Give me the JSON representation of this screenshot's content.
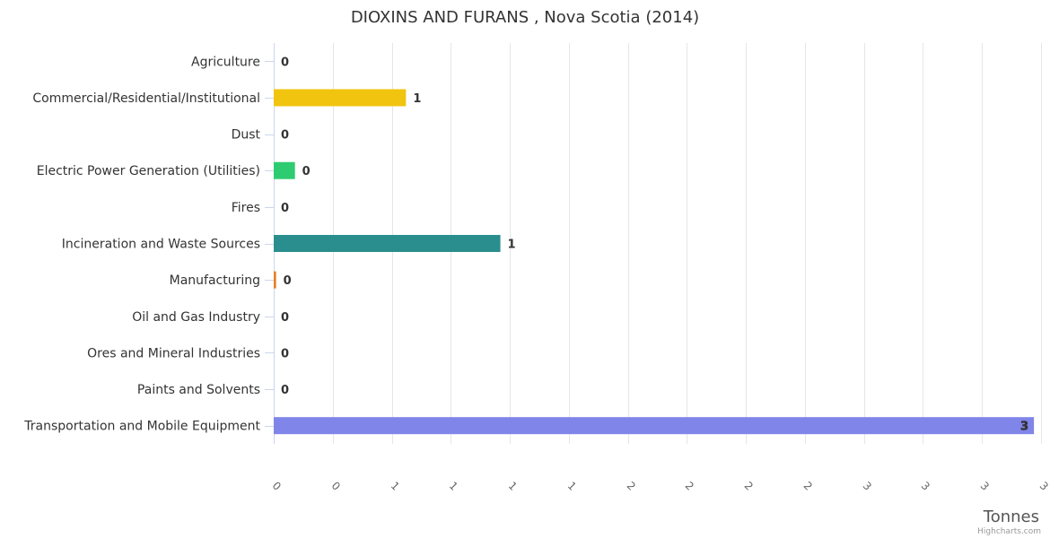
{
  "chart_data": {
    "type": "bar",
    "orientation": "horizontal",
    "title": "DIOXINS AND FURANS , Nova Scotia (2014)",
    "xlabel": "",
    "ylabel": "Tonnes",
    "categories": [
      "Agriculture",
      "Commercial/Residential/Institutional",
      "Dust",
      "Electric Power Generation (Utilities)",
      "Fires",
      "Incineration and Waste Sources",
      "Manufacturing",
      "Oil and Gas Industry",
      "Ores and Mineral Industries",
      "Paints and Solvents",
      "Transportation and Mobile Equipment"
    ],
    "values": [
      0,
      0.56,
      0,
      0.09,
      0,
      0.96,
      0.01,
      0,
      0,
      0,
      3.22
    ],
    "data_labels": [
      "0",
      "1",
      "0",
      "0",
      "0",
      "1",
      "0",
      "0",
      "0",
      "0",
      "3"
    ],
    "colors": [
      "#434348",
      "#f1c40f",
      "#90ed7d",
      "#2ecc71",
      "#8085e9",
      "#2a8e8e",
      "#e67e22",
      "#7cb5ec",
      "#f45b5b",
      "#91e8e1",
      "#8085e9"
    ],
    "tick_values": [
      0,
      0.25,
      0.5,
      0.75,
      1,
      1.25,
      1.5,
      1.75,
      2,
      2.25,
      2.5,
      2.75,
      3,
      3.25
    ],
    "tick_labels": [
      "0",
      "0",
      "1",
      "1",
      "1",
      "1",
      "2",
      "2",
      "2",
      "2",
      "3",
      "3",
      "3",
      "3"
    ],
    "xlim": [
      0,
      3.25
    ],
    "grid": true,
    "legend": "none"
  },
  "credits": "Highcharts.com"
}
